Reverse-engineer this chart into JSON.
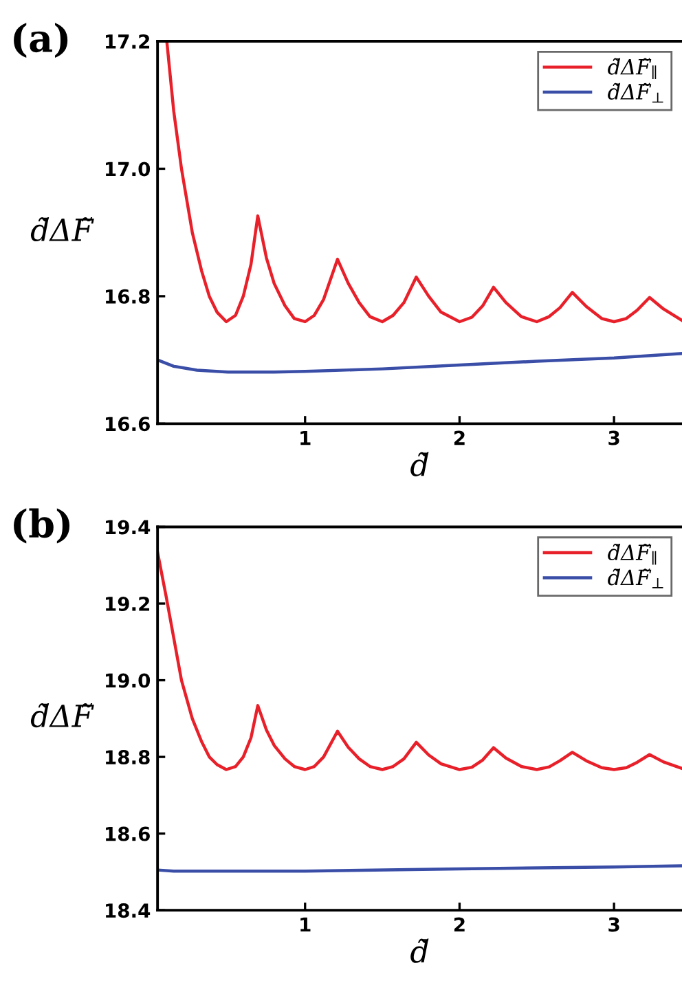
{
  "chart_data": [
    {
      "type": "line",
      "title": "(a)",
      "xlabel": "d̃",
      "ylabel": "d̃ΔF̃",
      "legend": "top right",
      "grid": false,
      "xlim": [
        0.045,
        3.44
      ],
      "xticks": [
        1,
        2,
        3
      ],
      "ylim": [
        16.6,
        17.2
      ],
      "yticks": [
        16.6,
        16.8,
        {
          "value": 17,
          "label": "17.0"
        },
        17.2
      ],
      "series": [
        {
          "name": "d̃ΔF̃$_{∥}$",
          "color": "#e8202a",
          "x": [
            0.105,
            0.15,
            0.2,
            0.27,
            0.33,
            0.38,
            0.43,
            0.49,
            0.55,
            0.6,
            0.65,
            0.694,
            0.75,
            0.8,
            0.87,
            0.93,
            1.0,
            1.06,
            1.12,
            1.21,
            1.28,
            1.35,
            1.42,
            1.5,
            1.57,
            1.64,
            1.72,
            1.8,
            1.88,
            2.0,
            2.08,
            2.15,
            2.22,
            2.3,
            2.4,
            2.5,
            2.58,
            2.65,
            2.73,
            2.82,
            2.92,
            3.0,
            3.08,
            3.15,
            3.23,
            3.32,
            3.44
          ],
          "values": [
            17.2,
            17.09,
            17.0,
            16.9,
            16.84,
            16.8,
            16.775,
            16.76,
            16.77,
            16.8,
            16.85,
            16.926,
            16.86,
            16.82,
            16.785,
            16.765,
            16.76,
            16.77,
            16.795,
            16.858,
            16.82,
            16.79,
            16.768,
            16.76,
            16.77,
            16.79,
            16.83,
            16.8,
            16.775,
            16.76,
            16.767,
            16.785,
            16.814,
            16.79,
            16.768,
            16.76,
            16.768,
            16.782,
            16.806,
            16.784,
            16.765,
            16.76,
            16.765,
            16.778,
            16.798,
            16.78,
            16.762
          ]
        },
        {
          "name": "d̃ΔF̃$_{⊥}$",
          "color": "#3a4ea8",
          "x": [
            0.045,
            0.15,
            0.3,
            0.5,
            0.8,
            1.0,
            1.5,
            2.0,
            2.5,
            3.0,
            3.44
          ],
          "values": [
            16.7,
            16.69,
            16.684,
            16.681,
            16.681,
            16.682,
            16.686,
            16.692,
            16.698,
            16.703,
            16.71
          ]
        }
      ]
    },
    {
      "type": "line",
      "title": "(b)",
      "xlabel": "d̃",
      "ylabel": "d̃ΔF̃",
      "legend": "top right",
      "grid": false,
      "xlim": [
        0.045,
        3.44
      ],
      "xticks": [
        1,
        2,
        3
      ],
      "ylim": [
        18.4,
        19.4
      ],
      "yticks": [
        18.4,
        18.6,
        18.8,
        {
          "value": 19,
          "label": "19.0"
        },
        19.2,
        19.4
      ],
      "series": [
        {
          "name": "d̃ΔF̃$_{∥}$",
          "color": "#e8202a",
          "x": [
            0.045,
            0.1,
            0.15,
            0.2,
            0.27,
            0.33,
            0.38,
            0.43,
            0.49,
            0.55,
            0.6,
            0.65,
            0.694,
            0.75,
            0.8,
            0.87,
            0.93,
            1.0,
            1.06,
            1.12,
            1.21,
            1.28,
            1.35,
            1.42,
            1.5,
            1.57,
            1.64,
            1.72,
            1.8,
            1.88,
            2.0,
            2.08,
            2.15,
            2.22,
            2.3,
            2.4,
            2.5,
            2.58,
            2.65,
            2.73,
            2.82,
            2.92,
            3.0,
            3.08,
            3.15,
            3.23,
            3.32,
            3.44
          ],
          "values": [
            19.334,
            19.22,
            19.11,
            19.0,
            18.9,
            18.84,
            18.8,
            18.78,
            18.767,
            18.775,
            18.8,
            18.85,
            18.934,
            18.87,
            18.83,
            18.795,
            18.775,
            18.767,
            18.775,
            18.8,
            18.867,
            18.825,
            18.795,
            18.775,
            18.767,
            18.775,
            18.795,
            18.838,
            18.805,
            18.782,
            18.767,
            18.773,
            18.792,
            18.824,
            18.797,
            18.775,
            18.767,
            18.774,
            18.79,
            18.812,
            18.79,
            18.772,
            18.767,
            18.772,
            18.786,
            18.806,
            18.787,
            18.77
          ]
        },
        {
          "name": "d̃ΔF̃$_{⊥}$",
          "color": "#3a4ea8",
          "x": [
            0.045,
            0.15,
            1.0,
            2.0,
            3.0,
            3.44
          ],
          "values": [
            18.505,
            18.502,
            18.502,
            18.508,
            18.513,
            18.516
          ]
        }
      ]
    }
  ]
}
